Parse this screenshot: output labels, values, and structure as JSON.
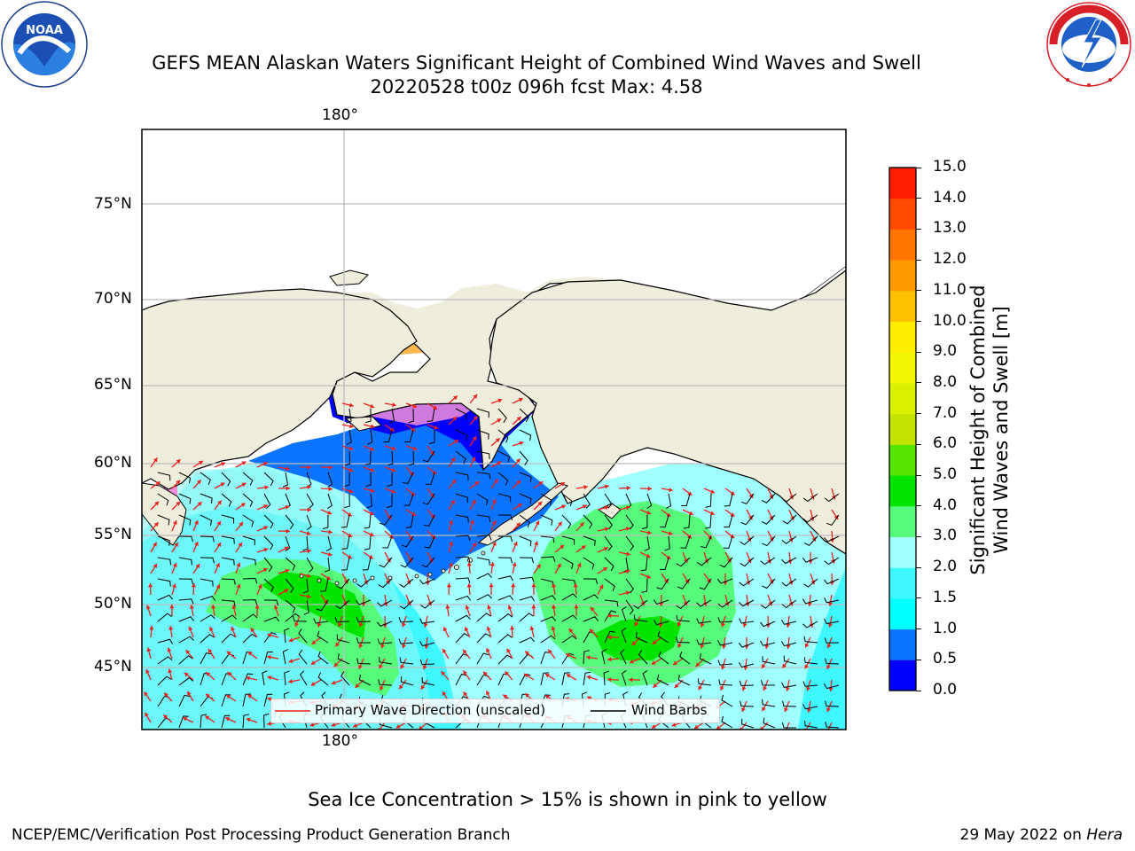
{
  "header": {
    "title_line1": "GEFS MEAN Alaskan Waters Significant Height of Combined Wind Waves and Swell",
    "title_line2": "20220528 t00z 096h fcst   Max: 4.58"
  },
  "logos": {
    "noaa_text": "NOAA",
    "noaa_ring_top": "NATIONAL OCEANIC AND ATMOSPHERIC ADMINISTRATION",
    "noaa_ring_bottom": "U.S. DEPARTMENT OF COMMERCE",
    "nws_ring_top": "NATIONAL WEATHER SERVICE"
  },
  "map": {
    "lon_label_top": "180°",
    "lon_label_bottom": "180°",
    "lat_labels": [
      "75°N",
      "70°N",
      "65°N",
      "60°N",
      "55°N",
      "50°N",
      "45°N"
    ],
    "legend": {
      "wave_label": "Primary Wave Direction (unscaled)",
      "barb_label": "Wind Barbs",
      "wave_color": "#e8211c",
      "barb_color": "#000000"
    },
    "colors": {
      "land": "#efeddc",
      "ocean_fill": "#8cf7f4",
      "grid": "#bdbdbd",
      "sea_ice": "#f28fd8"
    }
  },
  "colorbar": {
    "label_line1": "Significant Height of Combined",
    "label_line2": "Wind Waves and Swell [m]",
    "ticks": [
      "0.0",
      "0.5",
      "1.0",
      "1.5",
      "2.0",
      "3.0",
      "4.0",
      "5.0",
      "6.0",
      "7.0",
      "8.0",
      "9.0",
      "10.0",
      "11.0",
      "12.0",
      "13.0",
      "14.0",
      "15.0"
    ],
    "colors": [
      "#0000ff",
      "#0a74ff",
      "#00ffff",
      "#3ff7ff",
      "#a0ffff",
      "#56fb7c",
      "#00e400",
      "#57e400",
      "#c2e400",
      "#d9f000",
      "#f3f600",
      "#ffee00",
      "#ffc000",
      "#ff9a00",
      "#ff7700",
      "#ff4a00",
      "#ff1e00"
    ]
  },
  "footer": {
    "note": "Sea Ice Concentration > 15% is shown in pink to yellow",
    "left": "NCEP/EMC/Verification Post Processing Product Generation Branch",
    "right_prefix": "29 May 2022 on ",
    "right_host": "Hera"
  }
}
